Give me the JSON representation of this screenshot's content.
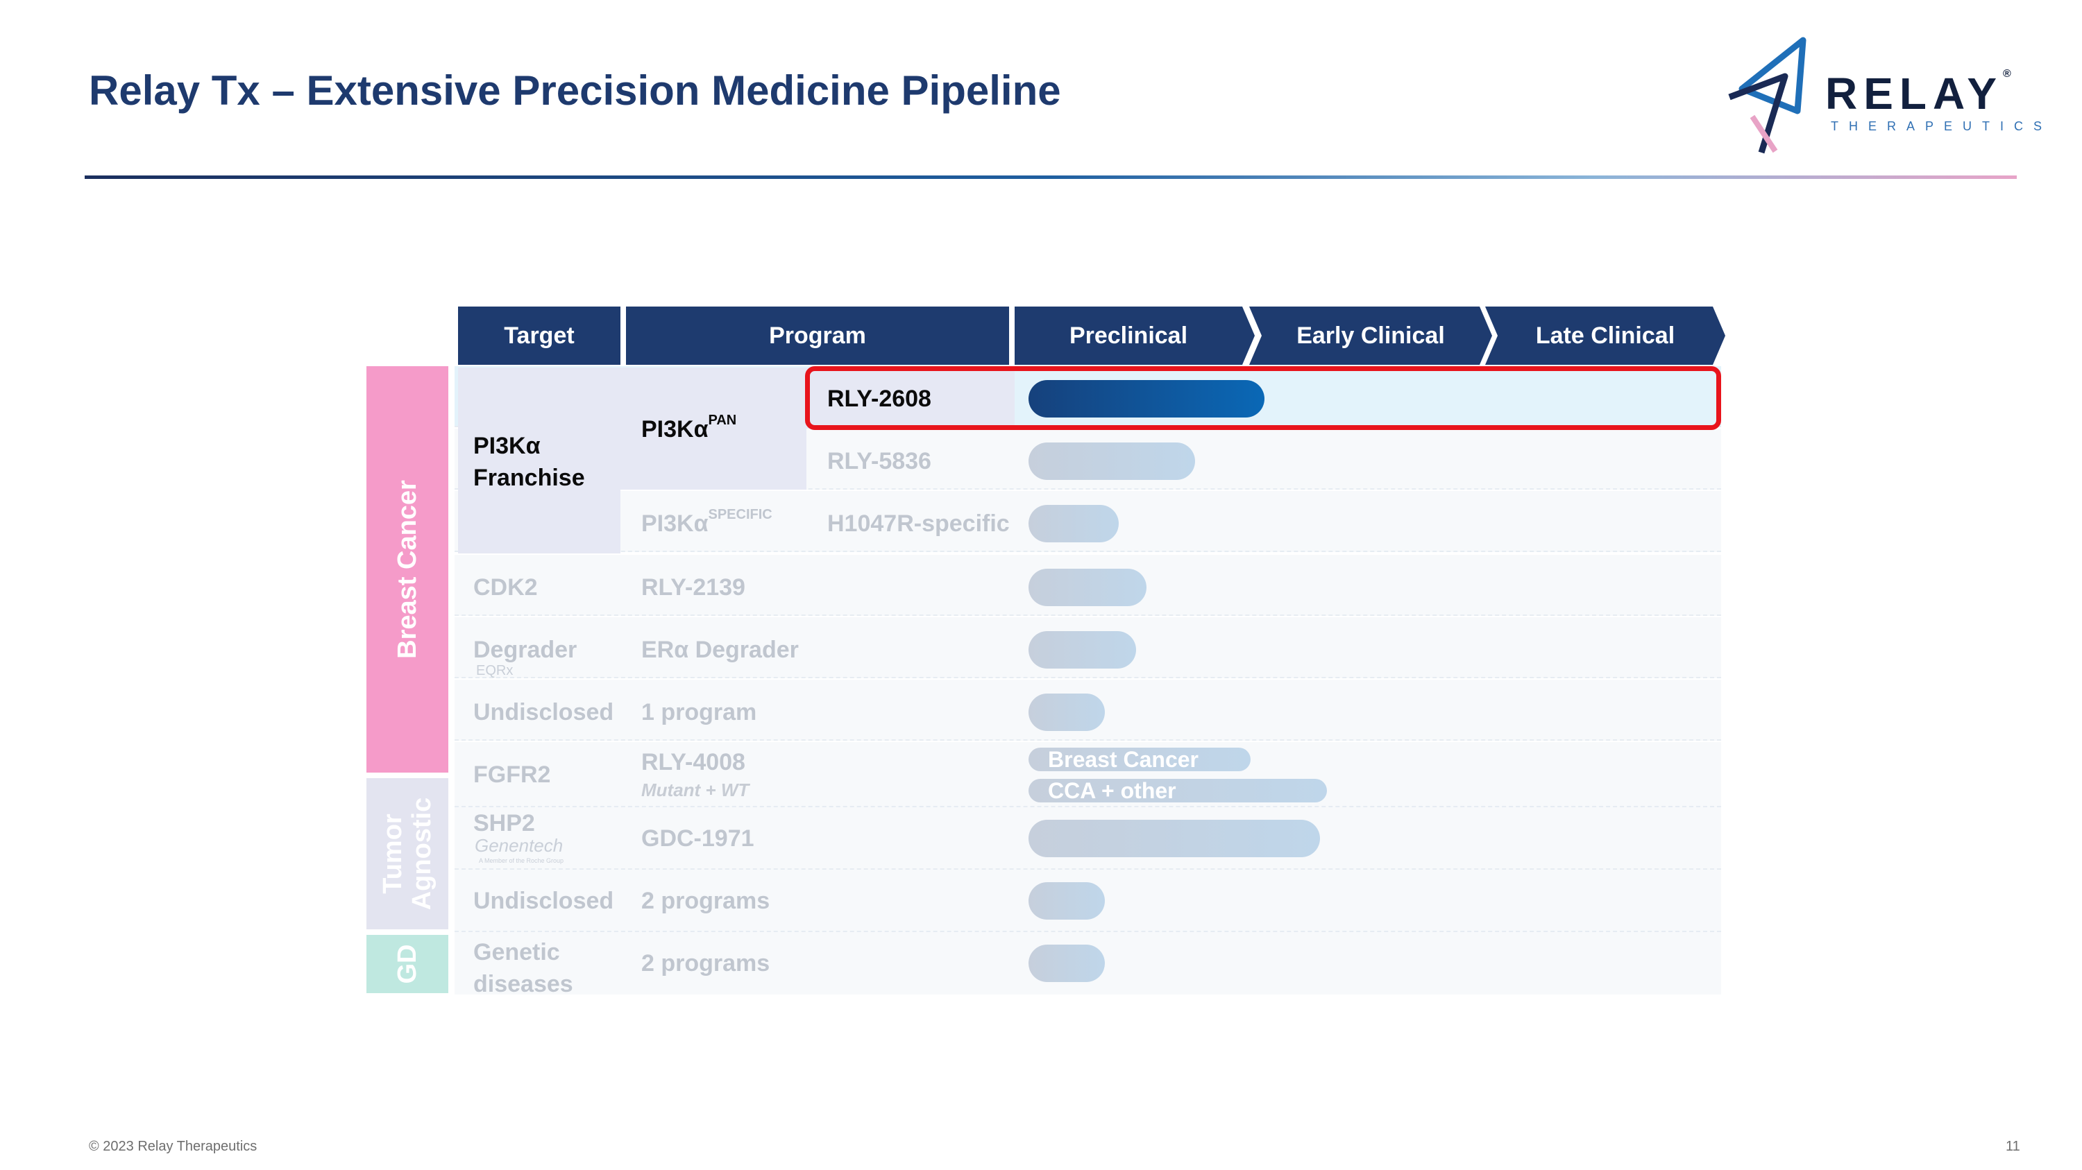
{
  "slide": {
    "title": "Relay Tx – Extensive Precision Medicine Pipeline",
    "footer": "© 2023 Relay Therapeutics",
    "page_number": "11"
  },
  "logo": {
    "word": "RELAY",
    "registered": "®",
    "sub": "THERAPEUTICS"
  },
  "header": {
    "target": "Target",
    "program": "Program",
    "stages": [
      "Preclinical",
      "Early Clinical",
      "Late Clinical"
    ]
  },
  "bands": {
    "breast_cancer": "Breast Cancer",
    "tumor_agnostic": "Tumor Agnostic",
    "gd": "GD"
  },
  "rows": {
    "franchise": {
      "target": "PI3Kα Franchise",
      "pan_base": "PI3Kα",
      "pan_sup": "PAN",
      "specific_base": "PI3Kα",
      "specific_sup": "SPECIFIC"
    },
    "rly2608": {
      "program": "RLY-2608",
      "progress": 0.34
    },
    "rly5836": {
      "program": "RLY-5836",
      "progress": 0.24
    },
    "h1047r": {
      "program": "H1047R-specific",
      "progress": 0.13
    },
    "cdk2": {
      "target": "CDK2",
      "program": "RLY-2139",
      "progress": 0.17
    },
    "degrader": {
      "target": "Degrader",
      "partner": "EQRx",
      "program": "ERα Degrader",
      "progress": 0.155
    },
    "undisclosed1": {
      "target": "Undisclosed",
      "program": "1 program",
      "progress": 0.11
    },
    "fgfr2": {
      "target": "FGFR2",
      "program": "RLY-4008",
      "program_note": "Mutant + WT",
      "bars": [
        {
          "label": "Breast Cancer",
          "progress": 0.32
        },
        {
          "label": "CCA + other",
          "progress": 0.43
        }
      ]
    },
    "shp2": {
      "target": "SHP2",
      "partner": "Genentech",
      "partner_sub": "A Member of the Roche Group",
      "program": "GDC-1971",
      "progress": 0.42
    },
    "undisclosed2": {
      "target": "Undisclosed",
      "program": "2 programs",
      "progress": 0.11
    },
    "genetic": {
      "target": "Genetic diseases",
      "program": "2 programs",
      "progress": 0.11
    }
  }
}
